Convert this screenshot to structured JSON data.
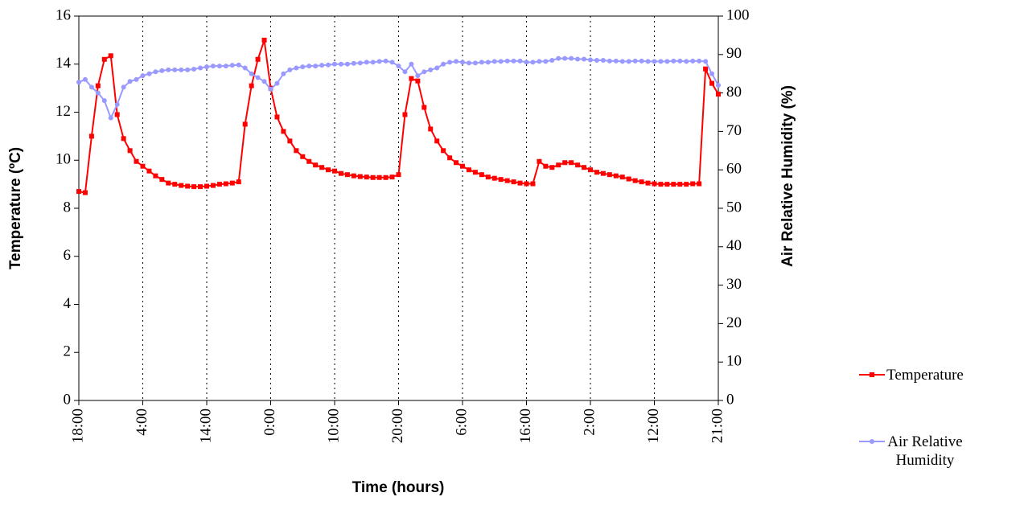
{
  "chart_data": {
    "type": "line",
    "x_label": "Time (hours)",
    "y_label": "Temperature (ºC)",
    "y2_label": "Air Relative Humidity (%)",
    "categories": [
      "18:00",
      null,
      null,
      null,
      null,
      null,
      null,
      null,
      null,
      null,
      "4:00",
      null,
      null,
      null,
      null,
      null,
      null,
      null,
      null,
      null,
      "14:00",
      null,
      null,
      null,
      null,
      null,
      null,
      null,
      null,
      null,
      "0:00",
      null,
      null,
      null,
      null,
      null,
      null,
      null,
      null,
      null,
      "10:00",
      null,
      null,
      null,
      null,
      null,
      null,
      null,
      null,
      null,
      "20:00",
      null,
      null,
      null,
      null,
      null,
      null,
      null,
      null,
      null,
      "6:00",
      null,
      null,
      null,
      null,
      null,
      null,
      null,
      null,
      null,
      "16:00",
      null,
      null,
      null,
      null,
      null,
      null,
      null,
      null,
      null,
      "2:00",
      null,
      null,
      null,
      null,
      null,
      null,
      null,
      null,
      null,
      "12:00",
      null,
      null,
      null,
      null,
      null,
      null,
      null,
      null,
      null,
      "21:00"
    ],
    "series": [
      {
        "name": "Temperature",
        "color": "#ff0000",
        "marker": "square",
        "axis": "y",
        "values": [
          8.7,
          8.65,
          11.0,
          13.1,
          14.2,
          14.35,
          11.9,
          10.9,
          10.4,
          9.95,
          9.75,
          9.55,
          9.35,
          9.2,
          9.05,
          9.0,
          8.95,
          8.92,
          8.9,
          8.9,
          8.92,
          8.95,
          9.0,
          9.02,
          9.05,
          9.1,
          11.5,
          13.1,
          14.2,
          15.0,
          13.0,
          11.8,
          11.2,
          10.8,
          10.4,
          10.15,
          9.95,
          9.8,
          9.7,
          9.6,
          9.55,
          9.45,
          9.4,
          9.35,
          9.32,
          9.3,
          9.28,
          9.28,
          9.28,
          9.3,
          9.4,
          11.9,
          13.4,
          13.3,
          12.2,
          11.3,
          10.8,
          10.4,
          10.1,
          9.9,
          9.75,
          9.6,
          9.5,
          9.4,
          9.3,
          9.25,
          9.2,
          9.15,
          9.1,
          9.05,
          9.02,
          9.02,
          9.95,
          9.75,
          9.7,
          9.8,
          9.9,
          9.9,
          9.8,
          9.7,
          9.6,
          9.5,
          9.45,
          9.4,
          9.35,
          9.3,
          9.22,
          9.15,
          9.1,
          9.05,
          9.02,
          9.0,
          9.0,
          9.0,
          9.0,
          9.0,
          9.02,
          9.02,
          13.8,
          13.2,
          12.75
        ]
      },
      {
        "name": "Air Relative Humidity",
        "color": "#9999ff",
        "marker": "circle",
        "axis": "y2",
        "values": [
          82.8,
          83.5,
          81.5,
          80,
          78,
          73.5,
          77,
          81.5,
          83,
          83.5,
          84.5,
          85,
          85.5,
          85.8,
          86,
          86,
          86,
          86,
          86.2,
          86.5,
          86.8,
          87,
          87,
          87,
          87.2,
          87.3,
          86.5,
          85,
          84,
          83,
          81,
          82.5,
          85,
          86,
          86.5,
          86.8,
          87,
          87,
          87.2,
          87.3,
          87.5,
          87.5,
          87.5,
          87.7,
          87.8,
          88,
          88,
          88.2,
          88.3,
          88,
          87,
          85.5,
          87.5,
          84.5,
          85.5,
          86,
          86.5,
          87.5,
          88,
          88.2,
          88,
          87.8,
          87.8,
          88,
          88,
          88.2,
          88.2,
          88.3,
          88.3,
          88.3,
          88,
          88,
          88.2,
          88.2,
          88.5,
          89,
          89,
          89,
          88.8,
          88.8,
          88.6,
          88.5,
          88.5,
          88.3,
          88.3,
          88.2,
          88.2,
          88.3,
          88.3,
          88.2,
          88.2,
          88.2,
          88.2,
          88.3,
          88.3,
          88.2,
          88.3,
          88.3,
          88.2,
          85,
          82
        ]
      }
    ],
    "ylim": [
      0,
      16
    ],
    "yticks": [
      0,
      2,
      4,
      6,
      8,
      10,
      12,
      14,
      16
    ],
    "y2lim": [
      0,
      100
    ],
    "y2ticks": [
      0,
      10,
      20,
      30,
      40,
      50,
      60,
      70,
      80,
      90,
      100
    ],
    "grid": "x-dashed",
    "legend": "right"
  }
}
